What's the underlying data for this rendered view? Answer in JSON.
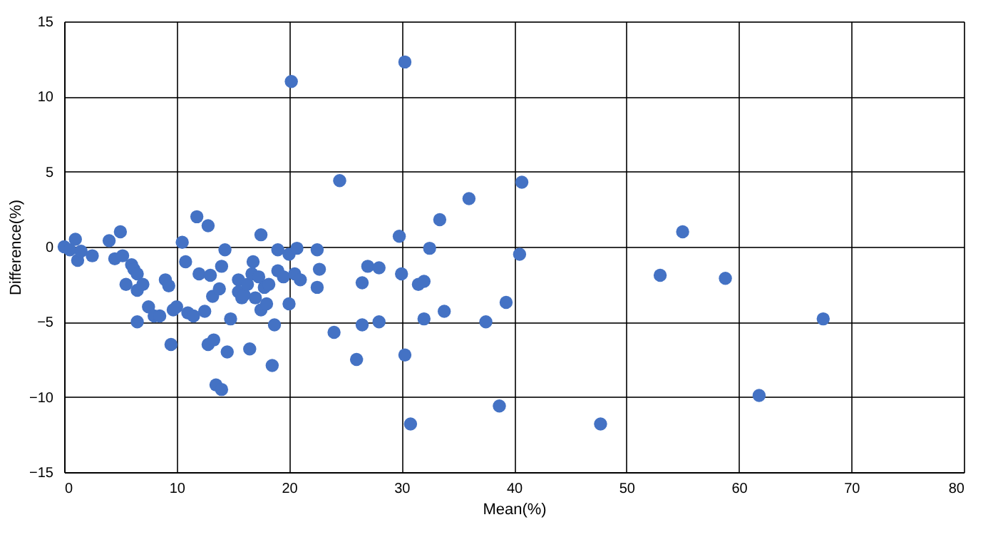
{
  "chart_data": {
    "type": "scatter",
    "xlabel": "Mean(%)",
    "ylabel": "Difference(%)",
    "xlim": [
      0,
      80
    ],
    "ylim": [
      -15,
      15
    ],
    "xticks": [
      0,
      10,
      20,
      30,
      40,
      50,
      60,
      70,
      80
    ],
    "yticks": [
      -15,
      -10,
      -5,
      0,
      5,
      10,
      15
    ],
    "grid": true,
    "marker": "circle",
    "x": [
      0,
      0.5,
      1,
      1.2,
      1.5,
      2.5,
      4,
      4.5,
      5,
      5.2,
      5.5,
      6,
      6.2,
      6.5,
      6.5,
      6.5,
      7,
      7.5,
      8,
      8.5,
      9,
      9.3,
      9.5,
      9.7,
      10,
      10.5,
      10.8,
      11,
      11.5,
      11.8,
      12,
      12.5,
      12.8,
      12.8,
      13,
      13.2,
      13.3,
      13.5,
      13.8,
      14,
      14,
      14.3,
      14.5,
      14.8,
      15.5,
      15.5,
      15.8,
      16,
      16.3,
      16.5,
      16.7,
      16.8,
      17,
      17.3,
      17.5,
      17.5,
      17.8,
      18,
      18.2,
      18.5,
      18.7,
      19,
      19,
      19.5,
      20,
      20,
      20.5,
      20.7,
      21,
      22.5,
      22.7,
      22.5,
      20.2,
      24.5,
      24,
      26,
      26.5,
      26.5,
      27,
      28,
      28,
      29.8,
      30,
      30.3,
      30.8,
      30.3,
      31.5,
      32,
      32,
      32.5,
      33.4,
      33.8,
      36,
      37.5,
      38.7,
      39.3,
      40.5,
      40.7,
      47.7,
      53,
      55,
      58.8,
      61.8,
      67.5
    ],
    "series": [
      {
        "color": "#4472c4",
        "values": [
          0,
          -0.2,
          0.5,
          -0.9,
          -0.3,
          -0.6,
          0.4,
          -0.8,
          1.0,
          -0.6,
          -2.5,
          -1.2,
          -1.5,
          -1.8,
          -2.9,
          -5,
          -2.5,
          -4,
          -4.6,
          -4.6,
          -2.2,
          -2.6,
          -6.5,
          -4.2,
          -4,
          0.3,
          -1,
          -4.4,
          -4.6,
          2,
          -1.8,
          -4.3,
          1.4,
          -6.5,
          -1.9,
          -3.3,
          -6.2,
          -9.2,
          -2.8,
          -1.3,
          -9.5,
          -0.2,
          -7,
          -4.8,
          -2.2,
          -3,
          -3.4,
          -3.2,
          -2.5,
          -6.8,
          -1.8,
          -1,
          -3.4,
          -2,
          -4.2,
          0.8,
          -2.7,
          -3.8,
          -2.5,
          -7.9,
          -5.2,
          -1.6,
          -0.2,
          -2,
          -3.8,
          -0.5,
          -1.8,
          -0.1,
          -2.2,
          -0.2,
          -1.5,
          -2.7,
          11,
          4.4,
          -5.7,
          -7.5,
          -5.2,
          -2.4,
          -1.3,
          -1.4,
          -5,
          0.7,
          -1.8,
          -7.2,
          -11.8,
          12.3,
          -2.5,
          -2.3,
          -4.8,
          -0.1,
          1.8,
          -4.3,
          3.2,
          -5,
          -10.6,
          -3.7,
          -0.5,
          4.3,
          -11.8,
          -1.9,
          1,
          -2.1,
          -9.9,
          -4.8
        ]
      }
    ]
  }
}
